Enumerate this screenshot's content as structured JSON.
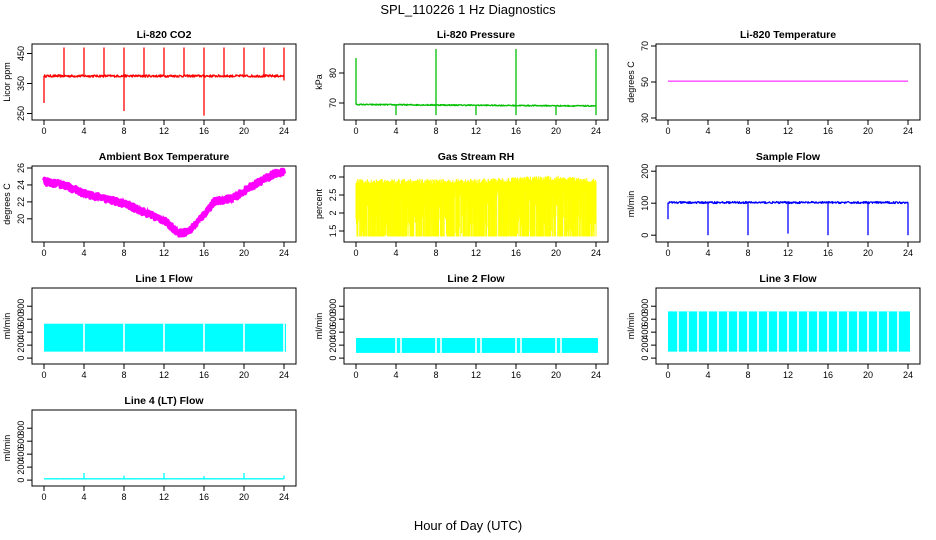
{
  "figure": {
    "title": "SPL_110226  1 Hz Diagnostics",
    "xlabel": "Hour of Day (UTC)"
  },
  "colors": {
    "red": "#ff0000",
    "green": "#00c000",
    "magenta_line": "#ff00ff",
    "magenta": "#ff00ff",
    "yellow": "#ffff00",
    "blue": "#0000ff",
    "cyan": "#00ffff",
    "axis": "#000000"
  },
  "chart_data": [
    {
      "id": "co2",
      "type": "line",
      "title": "Li-820 CO2",
      "ylabel": "Licor ppm",
      "xlim": [
        0,
        24
      ],
      "ylim": [
        235,
        475
      ],
      "xticks": [
        0,
        4,
        8,
        12,
        16,
        20,
        24
      ],
      "yticks": [
        250,
        350,
        450
      ],
      "color": "red",
      "pattern": "spiky",
      "baseline": [
        [
          0,
          375
        ],
        [
          24,
          375
        ]
      ],
      "noise": 4,
      "spikes_up": [
        [
          2,
          470
        ],
        [
          4,
          470
        ],
        [
          6,
          470
        ],
        [
          8,
          470
        ],
        [
          10,
          470
        ],
        [
          12,
          470
        ],
        [
          14,
          470
        ],
        [
          16,
          470
        ],
        [
          18,
          470
        ],
        [
          20,
          470
        ],
        [
          22,
          470
        ],
        [
          24,
          470
        ]
      ],
      "spikes_down": [
        [
          0,
          285
        ],
        [
          8,
          258
        ],
        [
          16,
          243
        ],
        [
          24,
          360
        ]
      ]
    },
    {
      "id": "pressure",
      "type": "line",
      "title": "Li-820 Pressure",
      "ylabel": "kPa",
      "xlim": [
        0,
        24
      ],
      "ylim": [
        65,
        89
      ],
      "xticks": [
        0,
        4,
        8,
        12,
        16,
        20,
        24
      ],
      "yticks": [
        70,
        80
      ],
      "color": "green",
      "pattern": "spiky",
      "baseline": [
        [
          0,
          69.5
        ],
        [
          24,
          69
        ]
      ],
      "noise": 0.2,
      "spikes_up": [
        [
          0,
          85
        ],
        [
          8,
          88
        ],
        [
          16,
          88
        ],
        [
          24,
          88
        ]
      ],
      "spikes_down": [
        [
          4,
          66
        ],
        [
          8,
          66
        ],
        [
          12,
          66
        ],
        [
          16,
          66
        ],
        [
          20,
          66
        ],
        [
          24,
          66
        ]
      ]
    },
    {
      "id": "licor-temp",
      "type": "line",
      "title": "Li-820 Temperature",
      "ylabel": "degrees C",
      "xlim": [
        0,
        24
      ],
      "ylim": [
        30,
        70
      ],
      "xticks": [
        0,
        4,
        8,
        12,
        16,
        20,
        24
      ],
      "yticks": [
        30,
        50,
        70
      ],
      "color": "magenta_line",
      "pattern": "flat",
      "baseline": [
        [
          0,
          50.5
        ],
        [
          24,
          50.5
        ]
      ]
    },
    {
      "id": "box-temp",
      "type": "line",
      "title": "Ambient Box Temperature",
      "ylabel": "degrees C",
      "xlim": [
        0,
        24
      ],
      "ylim": [
        17.5,
        26
      ],
      "xticks": [
        0,
        4,
        8,
        12,
        16,
        20,
        24
      ],
      "yticks": [
        20,
        22,
        24,
        26
      ],
      "color": "magenta",
      "pattern": "band",
      "baseline": [
        [
          0,
          24.4
        ],
        [
          2,
          24.0
        ],
        [
          4,
          23.0
        ],
        [
          8,
          21.8
        ],
        [
          10,
          20.8
        ],
        [
          12,
          19.8
        ],
        [
          13.5,
          18.3
        ],
        [
          14.5,
          18.5
        ],
        [
          16,
          20.5
        ],
        [
          17,
          22.0
        ],
        [
          19,
          22.5
        ],
        [
          21,
          24.0
        ],
        [
          23,
          25.3
        ],
        [
          24,
          25.5
        ]
      ],
      "noise": 0.35
    },
    {
      "id": "rh",
      "type": "area",
      "title": "Gas Stream RH",
      "ylabel": "percent",
      "xlim": [
        0,
        24
      ],
      "ylim": [
        1.25,
        3.25
      ],
      "xticks": [
        0,
        4,
        8,
        12,
        16,
        20,
        24
      ],
      "yticks": [
        1.5,
        2.0,
        2.5,
        3.0
      ],
      "color": "yellow",
      "pattern": "fill",
      "top": [
        [
          0,
          2.95
        ],
        [
          12,
          2.95
        ],
        [
          20,
          3.05
        ],
        [
          24,
          2.95
        ]
      ],
      "bottom": 1.35
    },
    {
      "id": "sample-flow",
      "type": "line",
      "title": "Sample Flow",
      "ylabel": "ml/min",
      "xlim": [
        0,
        24
      ],
      "ylim": [
        -15,
        210
      ],
      "xticks": [
        0,
        4,
        8,
        12,
        16,
        20,
        24
      ],
      "yticks": [
        0,
        100,
        200
      ],
      "color": "blue",
      "pattern": "spiky",
      "baseline": [
        [
          0,
          102
        ],
        [
          24,
          102
        ]
      ],
      "noise": 3,
      "spikes_up": [],
      "spikes_down": [
        [
          0,
          50
        ],
        [
          4,
          0
        ],
        [
          8,
          0
        ],
        [
          12,
          5
        ],
        [
          16,
          0
        ],
        [
          20,
          0
        ],
        [
          24,
          0
        ]
      ]
    },
    {
      "id": "line1",
      "type": "area",
      "title": "Line 1 Flow",
      "ylabel": "ml/min",
      "xlim": [
        0,
        24
      ],
      "ylim": [
        -60,
        1050
      ],
      "xticks": [
        0,
        4,
        8,
        12,
        16,
        20,
        24
      ],
      "yticks": [
        0,
        200,
        400,
        600,
        800
      ],
      "color": "cyan",
      "pattern": "blocks",
      "top": 530,
      "bottom": 100,
      "end": 24.2,
      "gaps": [
        4,
        8,
        12,
        16,
        20,
        24
      ]
    },
    {
      "id": "line2",
      "type": "area",
      "title": "Line 2 Flow",
      "ylabel": "ml/min",
      "xlim": [
        0,
        24
      ],
      "ylim": [
        -60,
        1050
      ],
      "xticks": [
        0,
        4,
        8,
        12,
        16,
        20,
        24
      ],
      "yticks": [
        0,
        200,
        400,
        600,
        800
      ],
      "color": "cyan",
      "pattern": "blocks",
      "top": 310,
      "bottom": 80,
      "end": 24.2,
      "gaps": [
        4,
        4.5,
        8,
        8.5,
        12,
        12.5,
        16,
        16.5,
        20,
        20.5
      ]
    },
    {
      "id": "line3",
      "type": "area",
      "title": "Line 3 Flow",
      "ylabel": "ml/min",
      "xlim": [
        0,
        24
      ],
      "ylim": [
        -60,
        1050
      ],
      "xticks": [
        0,
        4,
        8,
        12,
        16,
        20,
        24
      ],
      "yticks": [
        0,
        200,
        400,
        600,
        800
      ],
      "color": "cyan",
      "pattern": "blocks",
      "top": 720,
      "bottom": 100,
      "end": 24.2,
      "gaps": [
        1,
        2,
        3,
        4,
        5,
        6,
        7,
        8,
        9,
        10,
        11,
        12,
        13,
        14,
        15,
        16,
        17,
        18,
        19,
        20,
        21,
        22,
        23
      ]
    },
    {
      "id": "line4",
      "type": "line",
      "title": "Line 4 (LT) Flow",
      "ylabel": "ml/min",
      "xlim": [
        0,
        24
      ],
      "ylim": [
        -60,
        1050
      ],
      "xticks": [
        0,
        4,
        8,
        12,
        16,
        20,
        24
      ],
      "yticks": [
        0,
        200,
        400,
        600,
        800
      ],
      "color": "cyan",
      "pattern": "spiky",
      "baseline": [
        [
          0,
          20
        ],
        [
          24,
          20
        ]
      ],
      "noise": 1,
      "spikes_up": [
        [
          4,
          110
        ],
        [
          8,
          70
        ],
        [
          12,
          110
        ],
        [
          16,
          60
        ],
        [
          20,
          110
        ],
        [
          24,
          70
        ]
      ],
      "spikes_down": []
    }
  ]
}
